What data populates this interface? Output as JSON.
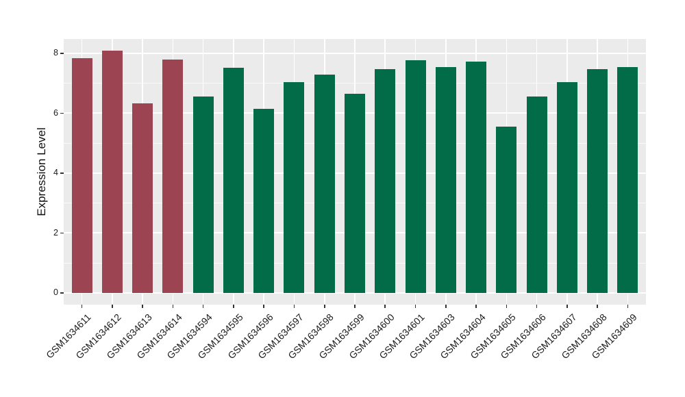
{
  "chart_data": {
    "type": "bar",
    "title": "",
    "xlabel": "",
    "ylabel": "Expression Level",
    "ylim": [
      0,
      8.48
    ],
    "yticks": [
      0,
      2,
      4,
      6,
      8
    ],
    "ytick_labels": [
      "0",
      "2",
      "4",
      "6",
      "8"
    ],
    "yticks_minor": [
      1,
      3,
      5,
      7
    ],
    "grid": "on",
    "legend_position": "none",
    "x_label_rotation_deg": 45,
    "categories": [
      "GSM1634611",
      "GSM1634612",
      "GSM1634613",
      "GSM1634614",
      "GSM1634594",
      "GSM1634595",
      "GSM1634596",
      "GSM1634597",
      "GSM1634598",
      "GSM1634599",
      "GSM1634600",
      "GSM1634601",
      "GSM1634603",
      "GSM1634604",
      "GSM1634605",
      "GSM1634606",
      "GSM1634607",
      "GSM1634608",
      "GSM1634609"
    ],
    "values": [
      7.83,
      8.09,
      6.34,
      7.8,
      6.57,
      7.52,
      6.14,
      7.05,
      7.3,
      6.64,
      7.48,
      7.76,
      7.55,
      7.72,
      5.56,
      6.55,
      7.05,
      7.48,
      7.54
    ],
    "groups": [
      "group1",
      "group1",
      "group1",
      "group1",
      "group2",
      "group2",
      "group2",
      "group2",
      "group2",
      "group2",
      "group2",
      "group2",
      "group2",
      "group2",
      "group2",
      "group2",
      "group2",
      "group2",
      "group2"
    ],
    "group_colors": {
      "group1": "#9C4452",
      "group2": "#026B47"
    },
    "panel_background": "#EBEBEB",
    "grid_major_color": "#FFFFFF",
    "grid_minor_color": "#FFFFFF",
    "axis_text_color": "#1A1A1A",
    "tick_mark_color": "#333333"
  }
}
